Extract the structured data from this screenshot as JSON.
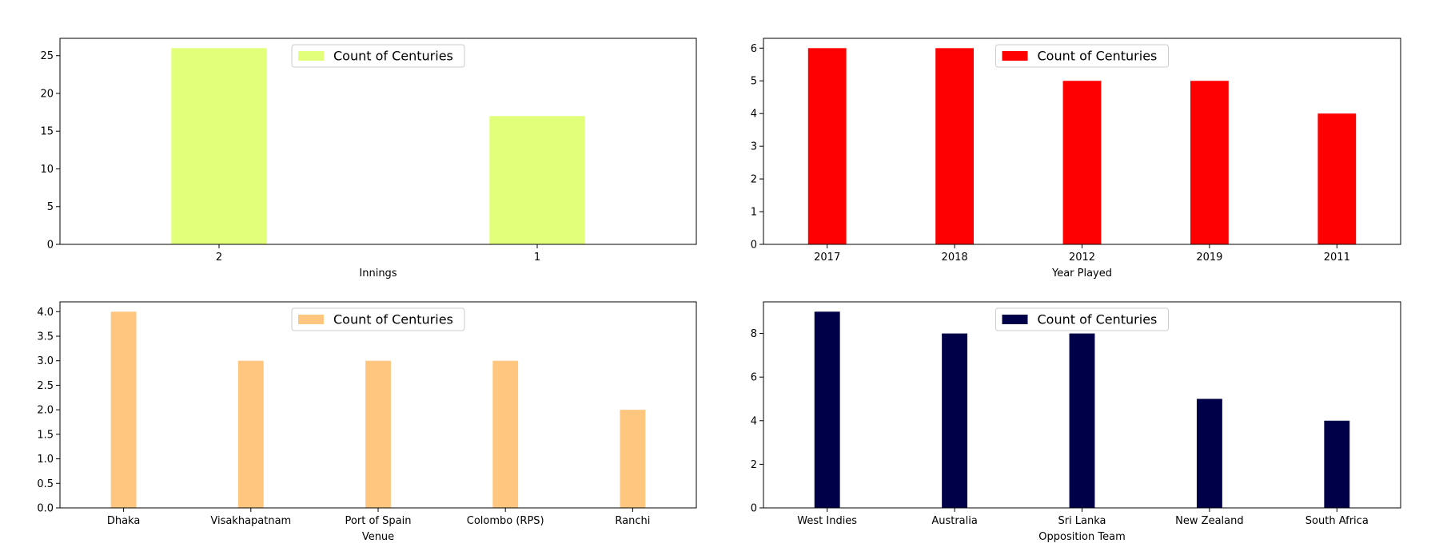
{
  "chart_data": [
    {
      "type": "bar",
      "title": "",
      "xlabel": "Innings",
      "ylabel": "",
      "categories": [
        "2",
        "1"
      ],
      "series": [
        {
          "name": "Count of Centuries",
          "values": [
            26,
            17
          ],
          "color": "#e2ff7a"
        }
      ],
      "ylim": [
        0,
        27.3
      ],
      "yticks": [
        "0",
        "5",
        "10",
        "15",
        "20",
        "25"
      ],
      "ytick_values": [
        0,
        5,
        10,
        15,
        20,
        25
      ],
      "grid": false,
      "legend": "upper center"
    },
    {
      "type": "bar",
      "title": "",
      "xlabel": "Year Played",
      "ylabel": "",
      "categories": [
        "2017",
        "2018",
        "2012",
        "2019",
        "2011"
      ],
      "series": [
        {
          "name": "Count of Centuries",
          "values": [
            6,
            6,
            5,
            5,
            4
          ],
          "color": "#ff0000"
        }
      ],
      "ylim": [
        0,
        6.3
      ],
      "yticks": [
        "0",
        "1",
        "2",
        "3",
        "4",
        "5",
        "6"
      ],
      "ytick_values": [
        0,
        1,
        2,
        3,
        4,
        5,
        6
      ],
      "grid": false,
      "legend": "upper center"
    },
    {
      "type": "bar",
      "title": "",
      "xlabel": "Venue",
      "ylabel": "",
      "categories": [
        "Dhaka",
        "Visakhapatnam",
        "Port of Spain",
        "Colombo (RPS)",
        "Ranchi"
      ],
      "series": [
        {
          "name": "Count of Centuries",
          "values": [
            4,
            3,
            3,
            3,
            2
          ],
          "color": "#ffc680"
        }
      ],
      "ylim": [
        0,
        4.2
      ],
      "yticks": [
        "0.0",
        "0.5",
        "1.0",
        "1.5",
        "2.0",
        "2.5",
        "3.0",
        "3.5",
        "4.0"
      ],
      "ytick_values": [
        0,
        0.5,
        1,
        1.5,
        2,
        2.5,
        3,
        3.5,
        4
      ],
      "grid": false,
      "legend": "upper center"
    },
    {
      "type": "bar",
      "title": "",
      "xlabel": "Opposition Team",
      "ylabel": "",
      "categories": [
        "West Indies",
        "Australia",
        "Sri Lanka",
        "New Zealand",
        "South Africa"
      ],
      "series": [
        {
          "name": "Count of Centuries",
          "values": [
            9,
            8,
            8,
            5,
            4
          ],
          "color": "#000048"
        }
      ],
      "ylim": [
        0,
        9.45
      ],
      "yticks": [
        "0",
        "2",
        "4",
        "6",
        "8"
      ],
      "ytick_values": [
        0,
        2,
        4,
        6,
        8
      ],
      "grid": false,
      "legend": "upper center"
    }
  ]
}
